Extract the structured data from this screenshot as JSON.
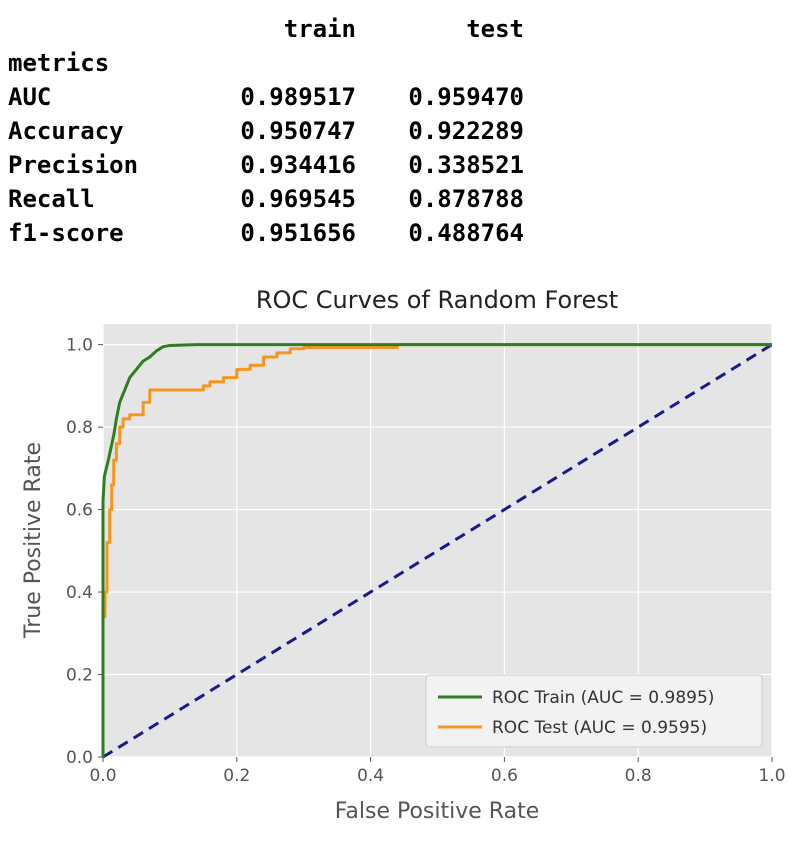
{
  "metrics_table": {
    "index_name": "metrics",
    "columns": [
      "train",
      "test"
    ],
    "rows": [
      {
        "metric": "AUC",
        "train": "0.989517",
        "test": "0.959470"
      },
      {
        "metric": "Accuracy",
        "train": "0.950747",
        "test": "0.922289"
      },
      {
        "metric": "Precision",
        "train": "0.934416",
        "test": "0.338521"
      },
      {
        "metric": "Recall",
        "train": "0.969545",
        "test": "0.878788"
      },
      {
        "metric": "f1-score",
        "train": "0.951656",
        "test": "0.488764"
      }
    ]
  },
  "chart_data": {
    "type": "line",
    "title": "ROC Curves of Random Forest",
    "xlabel": "False Positive Rate",
    "ylabel": "True Positive Rate",
    "xlim": [
      0.0,
      1.0
    ],
    "ylim": [
      0.0,
      1.05
    ],
    "xticks": [
      "0.0",
      "0.2",
      "0.4",
      "0.6",
      "0.8",
      "1.0"
    ],
    "yticks": [
      "0.0",
      "0.2",
      "0.4",
      "0.6",
      "0.8",
      "1.0"
    ],
    "grid": true,
    "legend_position": "bottom-right",
    "background_color": "#e5e5e5",
    "series": [
      {
        "name": "ROC Train (AUC = 0.9895)",
        "color": "#2e7d1e",
        "style": "solid",
        "x": [
          0.0,
          0.0,
          0.002,
          0.005,
          0.008,
          0.012,
          0.016,
          0.02,
          0.025,
          0.03,
          0.035,
          0.04,
          0.05,
          0.06,
          0.07,
          0.08,
          0.09,
          0.1,
          0.14,
          0.3,
          0.45,
          1.0
        ],
        "y": [
          0.0,
          0.62,
          0.68,
          0.7,
          0.72,
          0.75,
          0.78,
          0.82,
          0.86,
          0.88,
          0.9,
          0.92,
          0.94,
          0.96,
          0.97,
          0.985,
          0.995,
          0.998,
          1.0,
          1.0,
          1.0,
          1.0
        ]
      },
      {
        "name": "ROC Test (AUC = 0.9595)",
        "color": "#f7961e",
        "style": "solid",
        "x": [
          0.0,
          0.0,
          0.003,
          0.003,
          0.006,
          0.006,
          0.01,
          0.01,
          0.013,
          0.013,
          0.016,
          0.016,
          0.02,
          0.02,
          0.025,
          0.025,
          0.03,
          0.03,
          0.04,
          0.04,
          0.06,
          0.06,
          0.07,
          0.07,
          0.15,
          0.15,
          0.16,
          0.16,
          0.18,
          0.18,
          0.2,
          0.2,
          0.22,
          0.22,
          0.24,
          0.24,
          0.26,
          0.26,
          0.28,
          0.28,
          0.3,
          0.3,
          0.44,
          0.44,
          1.0
        ],
        "y": [
          0.12,
          0.34,
          0.34,
          0.4,
          0.4,
          0.52,
          0.52,
          0.6,
          0.6,
          0.66,
          0.66,
          0.72,
          0.72,
          0.76,
          0.76,
          0.8,
          0.8,
          0.82,
          0.82,
          0.83,
          0.83,
          0.86,
          0.86,
          0.89,
          0.89,
          0.9,
          0.9,
          0.91,
          0.91,
          0.92,
          0.92,
          0.94,
          0.94,
          0.95,
          0.95,
          0.97,
          0.97,
          0.98,
          0.98,
          0.99,
          0.99,
          0.993,
          0.993,
          1.0,
          1.0
        ]
      },
      {
        "name": "",
        "color": "#1a1a8c",
        "style": "dashed",
        "x": [
          0.0,
          1.0
        ],
        "y": [
          0.0,
          1.0
        ]
      }
    ]
  }
}
